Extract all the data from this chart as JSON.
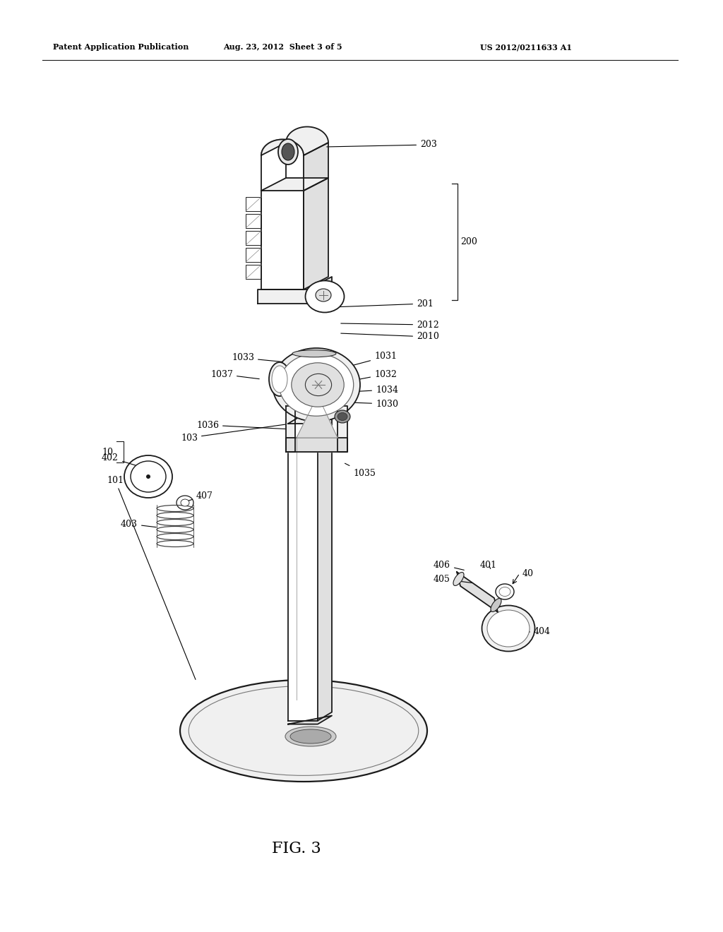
{
  "title_left": "Patent Application Publication",
  "title_mid": "Aug. 23, 2012  Sheet 3 of 5",
  "title_right": "US 2012/0211633 A1",
  "fig_label": "FIG. 3",
  "bg_color": "#ffffff",
  "lc": "#1a1a1a",
  "lw": 1.3,
  "fill_light": "#f0f0f0",
  "fill_mid": "#e0e0e0",
  "fill_dark": "#c8c8c8",
  "fill_white": "#ffffff"
}
